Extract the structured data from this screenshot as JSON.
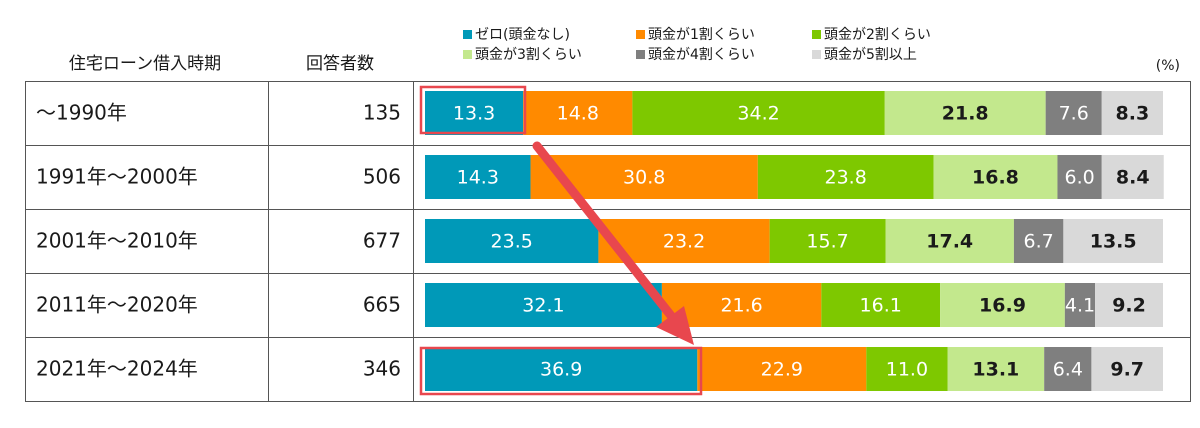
{
  "chart_data": {
    "type": "bar",
    "orientation": "horizontal",
    "stacked": true,
    "category_header": "住宅ローン借入時期",
    "respondents_header": "回答者数",
    "unit_label": "(%)",
    "categories": [
      "～1990年",
      "1991年～2000年",
      "2001年～2010年",
      "2011年～2020年",
      "2021年～2024年"
    ],
    "respondents": [
      135,
      506,
      677,
      665,
      346
    ],
    "xlim": [
      0,
      100
    ],
    "series": [
      {
        "name": "ゼロ(頭金なし)",
        "color": "#0099b8",
        "label_color": "#ffffff",
        "values": [
          13.3,
          14.3,
          23.5,
          32.1,
          36.9
        ],
        "value_labels": [
          "13.3",
          "14.3",
          "23.5",
          "32.1",
          "36.9"
        ]
      },
      {
        "name": "頭金が1割くらい",
        "color": "#ff8a00",
        "label_color": "#ffffff",
        "values": [
          14.8,
          30.8,
          23.2,
          21.6,
          22.9
        ],
        "value_labels": [
          "14.8",
          "30.8",
          "23.2",
          "21.6",
          "22.9"
        ]
      },
      {
        "name": "頭金が2割くらい",
        "color": "#7ec800",
        "label_color": "#ffffff",
        "values": [
          34.2,
          23.8,
          15.7,
          16.1,
          11.0
        ],
        "value_labels": [
          "34.2",
          "23.8",
          "15.7",
          "16.1",
          "11.0"
        ]
      },
      {
        "name": "頭金が3割くらい",
        "color": "#c3e88d",
        "label_color": "#1a1a1a",
        "values": [
          21.8,
          16.8,
          17.4,
          16.9,
          13.1
        ],
        "value_labels": [
          "21.8",
          "16.8",
          "17.4",
          "16.9",
          "13.1"
        ]
      },
      {
        "name": "頭金が4割くらい",
        "color": "#7f7f7f",
        "label_color": "#ffffff",
        "values": [
          7.6,
          6.0,
          6.7,
          4.1,
          6.4
        ],
        "value_labels": [
          "7.6",
          "6.0",
          "6.7",
          "4.1",
          "6.4"
        ]
      },
      {
        "name": "頭金が5割以上",
        "color": "#d9d9d9",
        "label_color": "#1a1a1a",
        "values": [
          8.3,
          8.4,
          13.5,
          9.2,
          9.7
        ],
        "value_labels": [
          "8.3",
          "8.4",
          "13.5",
          "9.2",
          "9.7"
        ]
      }
    ]
  }
}
